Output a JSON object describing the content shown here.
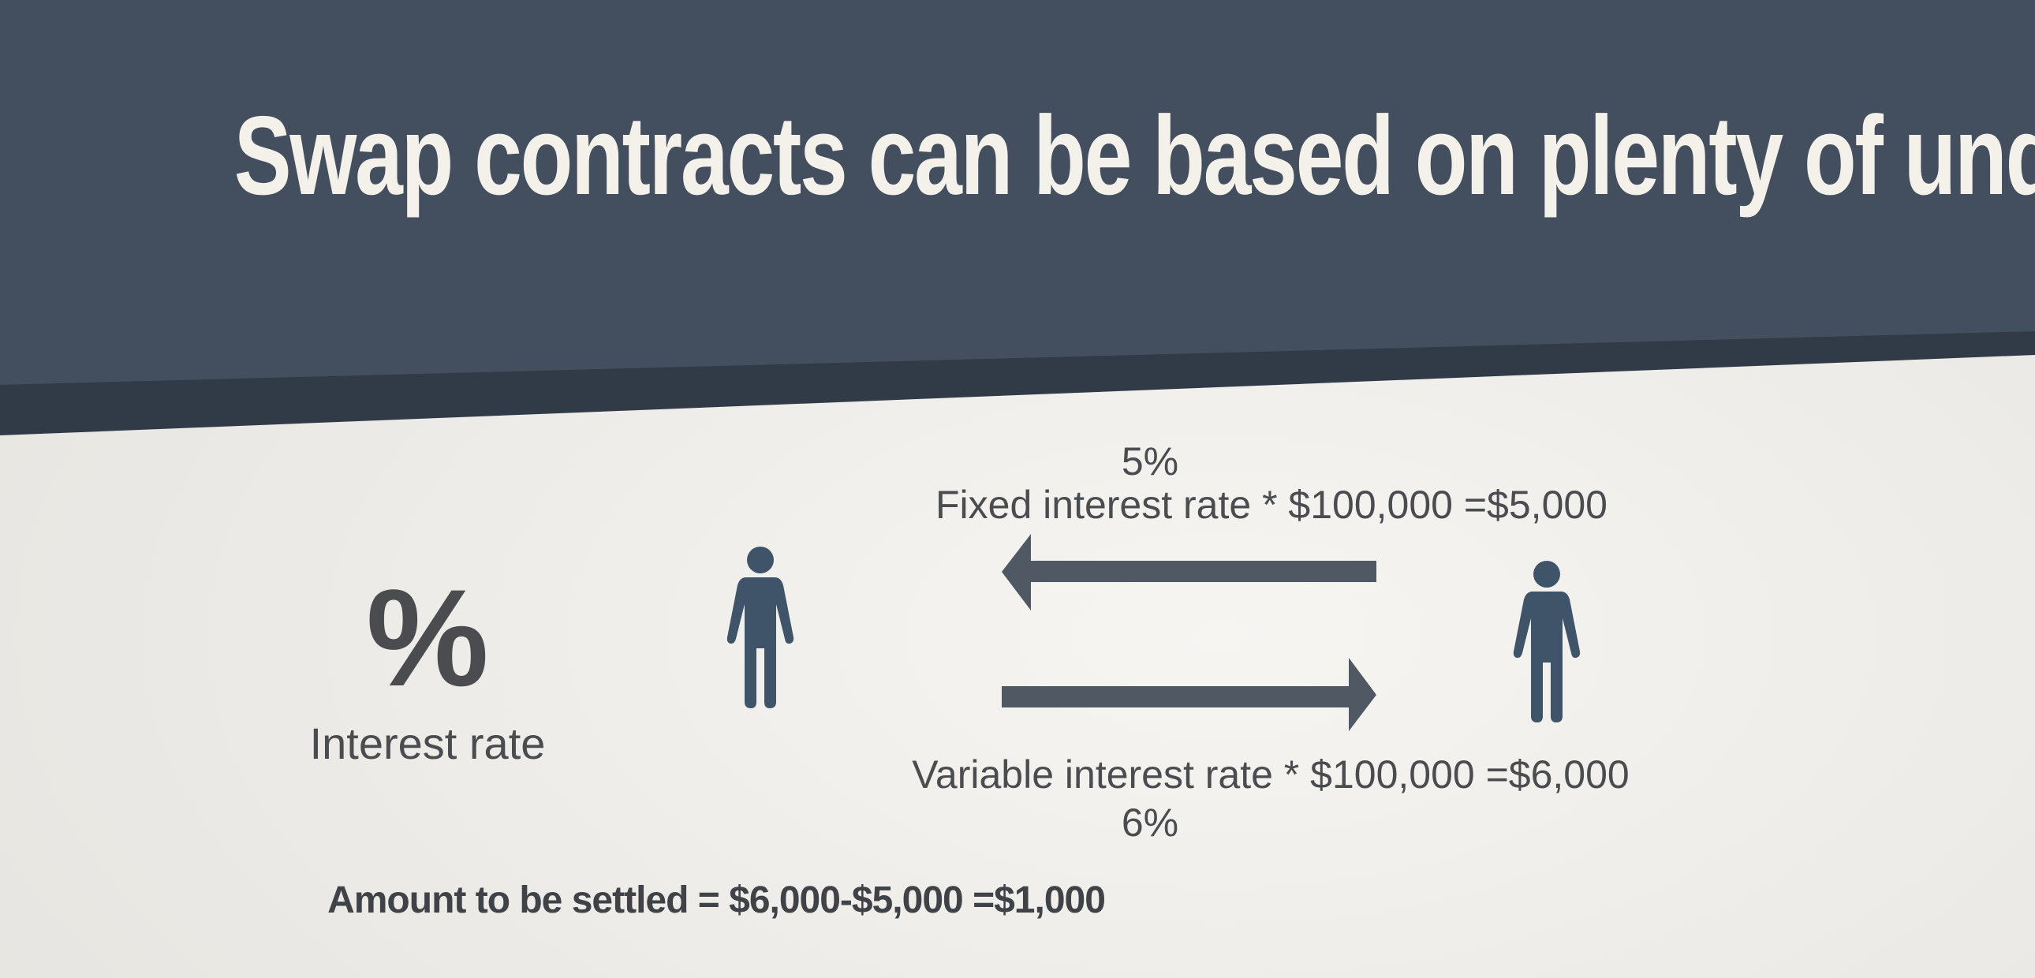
{
  "title": "Swap contracts can be based on plenty of underlying assets:",
  "asset": {
    "symbol": "%",
    "label": "Interest rate"
  },
  "fixed_leg": {
    "rate": "5%",
    "formula": "Fixed interest rate * $100,000 =$5,000"
  },
  "variable_leg": {
    "formula": "Variable interest rate * $100,000 =$6,000",
    "rate": "6%"
  },
  "settlement": "Amount to be settled = $6,000-$5,000 =$1,000",
  "colors": {
    "banner": "#434f5e",
    "banner_stripe": "#313b47",
    "person": "#3f5369",
    "arrow": "#4f5863",
    "text": "#4a4c50",
    "title_text": "#f4f1ea"
  },
  "icons": {
    "left_party": "person-icon",
    "right_party": "person-icon",
    "fixed_payment": "arrow-left-icon",
    "variable_payment": "arrow-right-icon"
  }
}
